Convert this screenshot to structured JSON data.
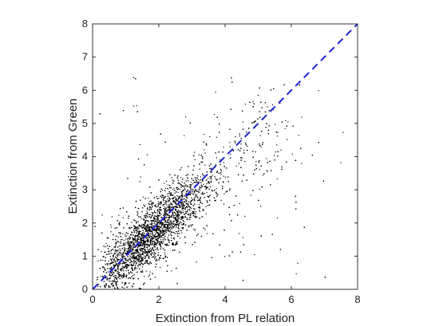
{
  "chart_data": {
    "type": "scatter",
    "title": "",
    "xlabel": "Extinction from PL relation",
    "ylabel": "Extinction from Green",
    "xlim": [
      0,
      8
    ],
    "ylim": [
      0,
      8
    ],
    "xticks": [
      "0",
      "2",
      "4",
      "6",
      "8"
    ],
    "yticks": [
      "0",
      "1",
      "2",
      "3",
      "4",
      "5",
      "6",
      "7",
      "8"
    ],
    "grid": false,
    "legend": "none",
    "reference_line": {
      "from": [
        0,
        0
      ],
      "to": [
        8,
        8
      ],
      "style": "dashed",
      "color": "#1f1fd6"
    },
    "marker_color": "#000000",
    "cluster_summary": {
      "approx_point_count": 6000,
      "center_x": 1.8,
      "center_y": 1.7,
      "spread": "dense elongated cloud along 1:1 line, core x 0.7-3.5, sparse tail to x~7.8, y~6.5"
    }
  }
}
